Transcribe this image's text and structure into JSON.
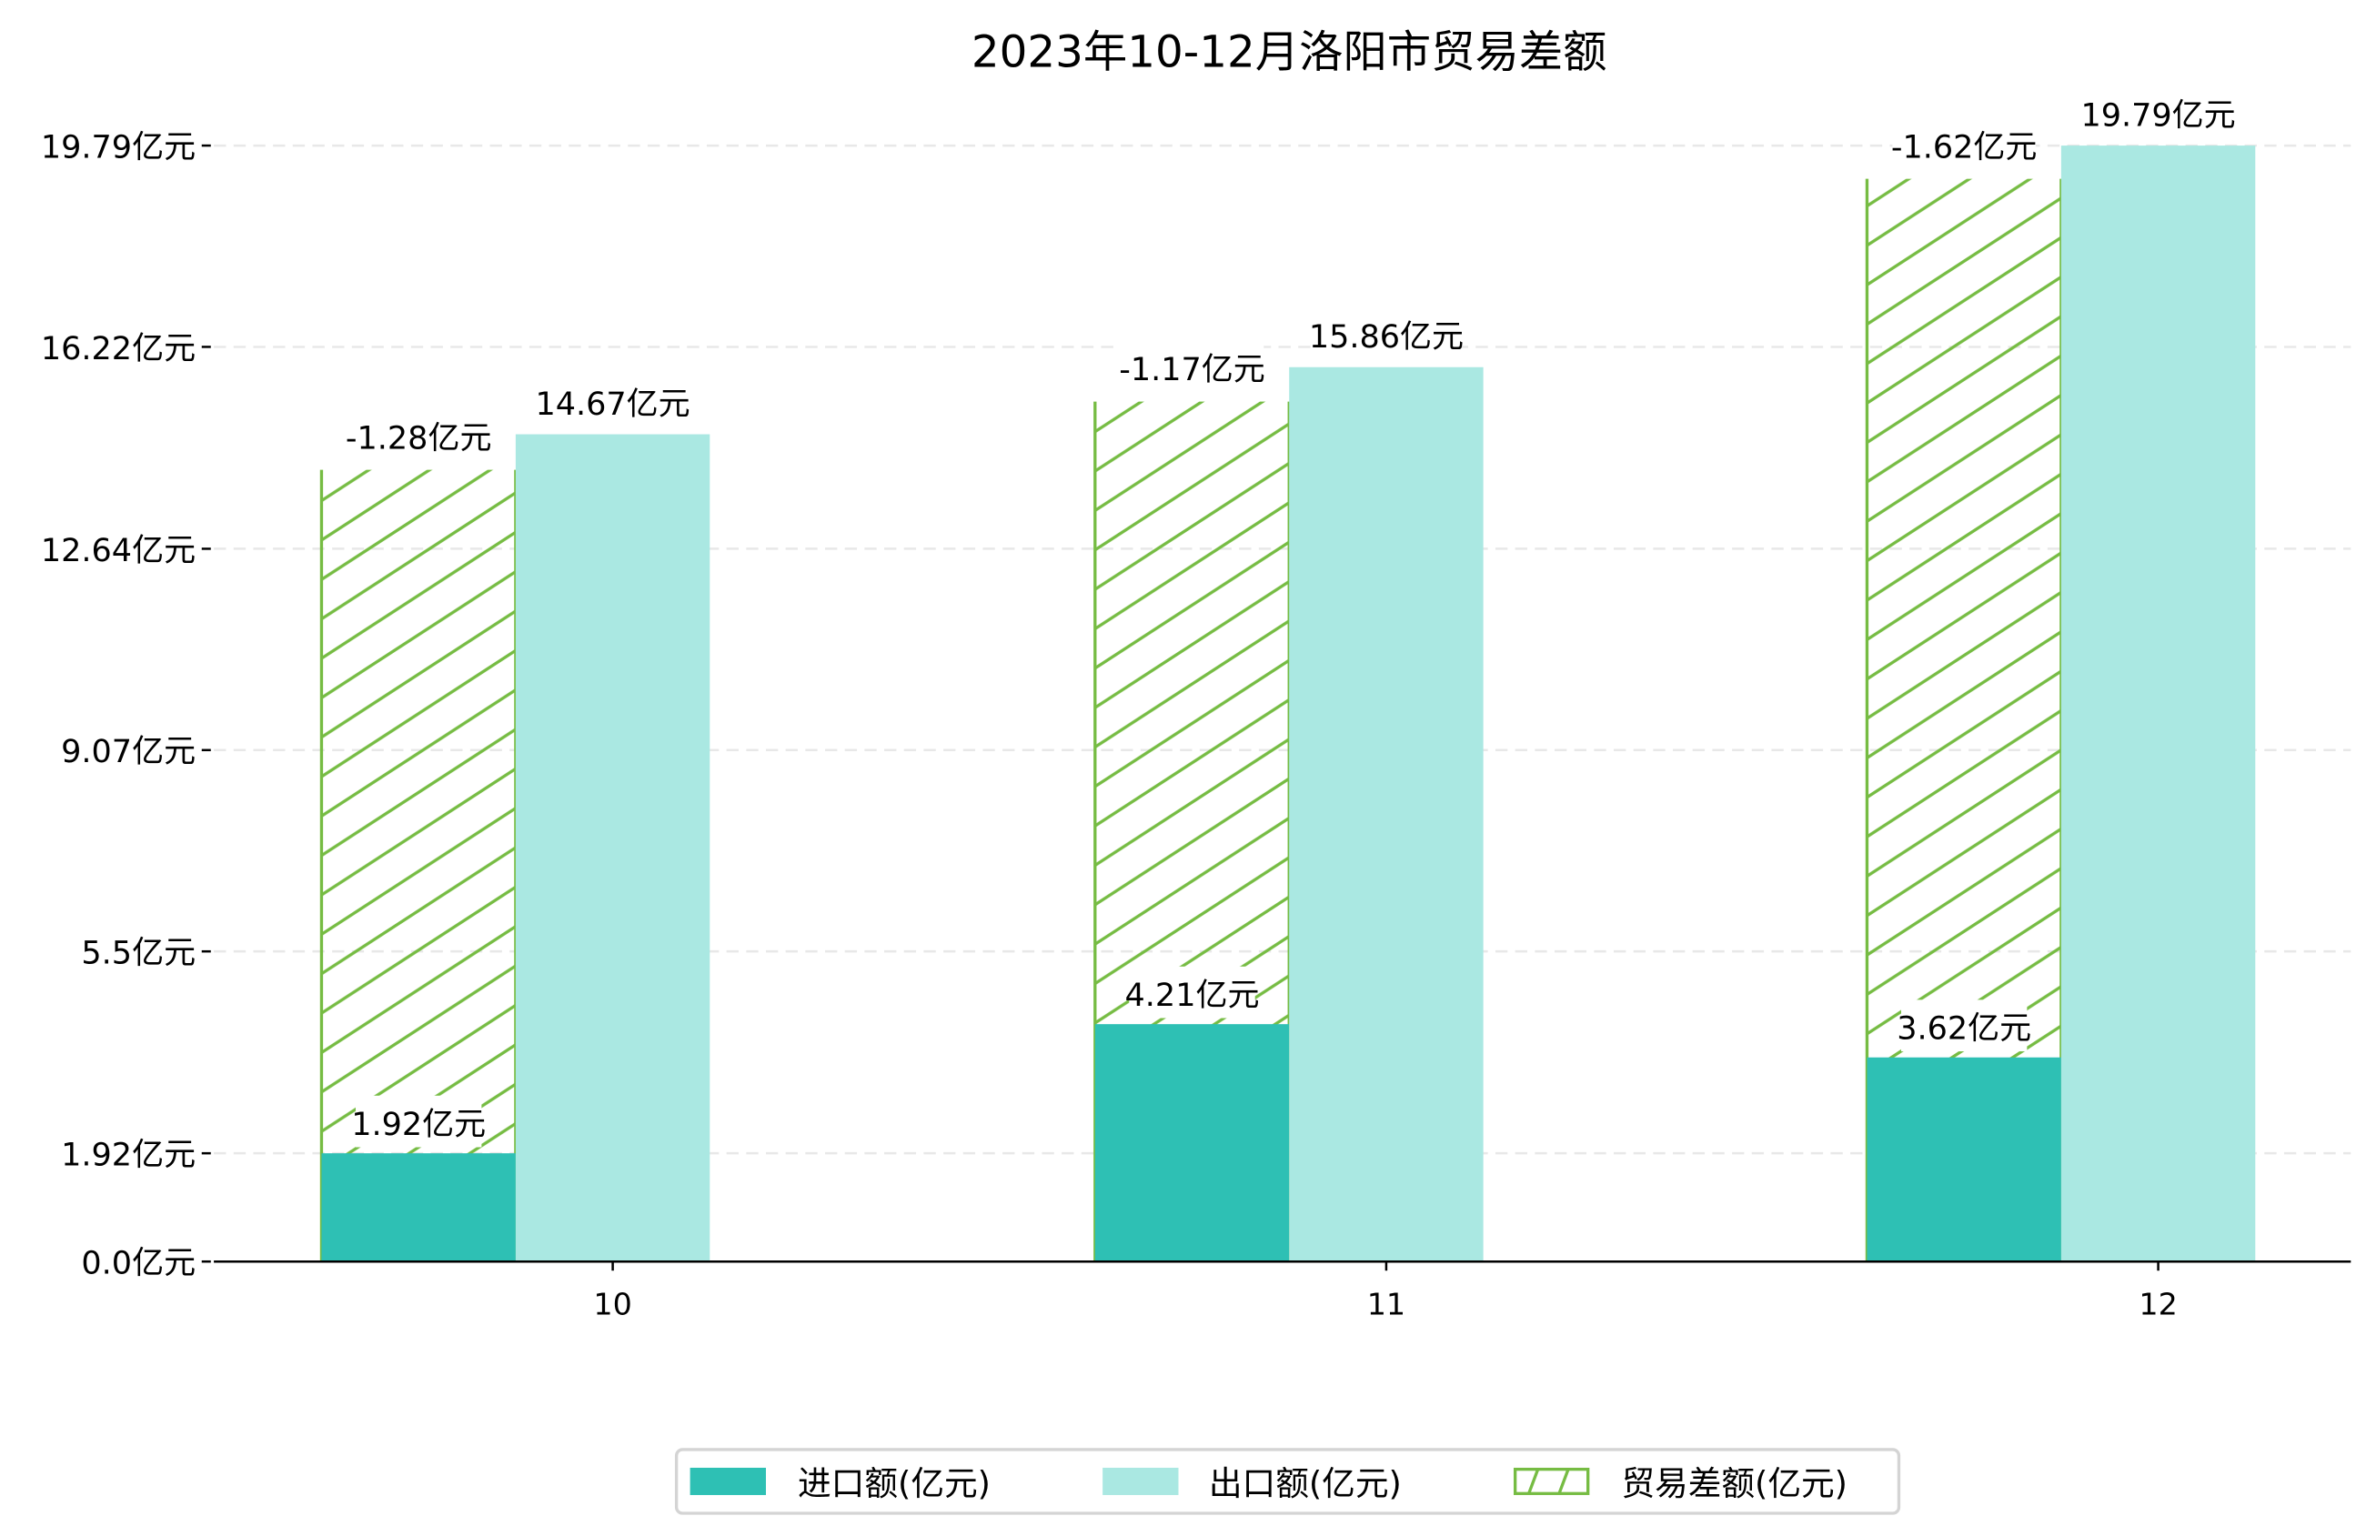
{
  "chart_data": {
    "type": "bar",
    "title": "2023年10-12月洛阳市贸易差额",
    "xlabel": "",
    "ylabel": "",
    "categories": [
      "10",
      "11",
      "12"
    ],
    "ylim": [
      0,
      19.79
    ],
    "yticks": [
      0.0,
      1.92,
      5.5,
      9.07,
      12.64,
      16.22,
      19.79
    ],
    "ytick_labels": [
      "0.0亿元",
      "1.92亿元",
      "5.5亿元",
      "9.07亿元",
      "12.64亿元",
      "16.22亿元",
      "19.79亿元"
    ],
    "grid": "horizontal dashed",
    "legend_position": "bottom-center",
    "series": [
      {
        "name": "进口额(亿元)",
        "values": [
          1.92,
          4.21,
          3.62
        ],
        "labels": [
          "1.92亿元",
          "4.21亿元",
          "3.62亿元"
        ],
        "color": "#2ec0b4"
      },
      {
        "name": "出口额(亿元)",
        "values": [
          14.67,
          15.86,
          19.79
        ],
        "labels": [
          "14.67亿元",
          "15.86亿元",
          "19.79亿元"
        ],
        "color": "#aae8e2"
      },
      {
        "name": "贸易差额(亿元)",
        "values": [
          -1.28,
          -1.17,
          -1.62
        ],
        "labels": [
          "-1.28亿元",
          "-1.17亿元",
          "-1.62亿元"
        ],
        "bar_top": [
          14.04,
          15.25,
          19.2
        ],
        "color": "#76bc43",
        "hatch": "/"
      }
    ]
  }
}
